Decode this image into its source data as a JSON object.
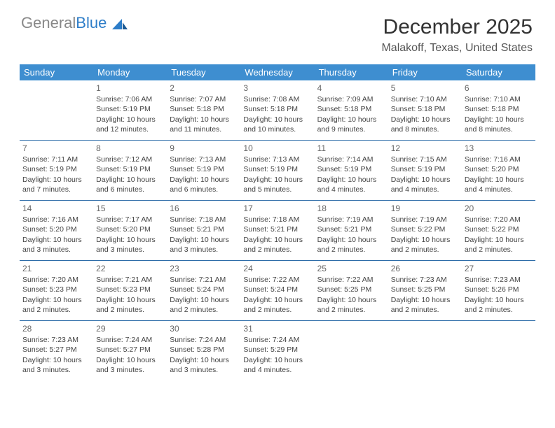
{
  "logo": {
    "text_gray": "General",
    "text_blue": "Blue"
  },
  "title": "December 2025",
  "location": "Malakoff, Texas, United States",
  "colors": {
    "header_bg": "#3e8ed0",
    "header_text": "#ffffff",
    "row_border": "#2d6ca8",
    "logo_gray": "#888888",
    "logo_blue": "#2d7dc8",
    "text": "#444444"
  },
  "typography": {
    "title_fontsize": 30,
    "location_fontsize": 16,
    "header_fontsize": 13,
    "daynum_fontsize": 12,
    "body_fontsize": 10.5
  },
  "day_headers": [
    "Sunday",
    "Monday",
    "Tuesday",
    "Wednesday",
    "Thursday",
    "Friday",
    "Saturday"
  ],
  "weeks": [
    [
      null,
      {
        "n": "1",
        "sr": "Sunrise: 7:06 AM",
        "ss": "Sunset: 5:19 PM",
        "d1": "Daylight: 10 hours",
        "d2": "and 12 minutes."
      },
      {
        "n": "2",
        "sr": "Sunrise: 7:07 AM",
        "ss": "Sunset: 5:18 PM",
        "d1": "Daylight: 10 hours",
        "d2": "and 11 minutes."
      },
      {
        "n": "3",
        "sr": "Sunrise: 7:08 AM",
        "ss": "Sunset: 5:18 PM",
        "d1": "Daylight: 10 hours",
        "d2": "and 10 minutes."
      },
      {
        "n": "4",
        "sr": "Sunrise: 7:09 AM",
        "ss": "Sunset: 5:18 PM",
        "d1": "Daylight: 10 hours",
        "d2": "and 9 minutes."
      },
      {
        "n": "5",
        "sr": "Sunrise: 7:10 AM",
        "ss": "Sunset: 5:18 PM",
        "d1": "Daylight: 10 hours",
        "d2": "and 8 minutes."
      },
      {
        "n": "6",
        "sr": "Sunrise: 7:10 AM",
        "ss": "Sunset: 5:18 PM",
        "d1": "Daylight: 10 hours",
        "d2": "and 8 minutes."
      }
    ],
    [
      {
        "n": "7",
        "sr": "Sunrise: 7:11 AM",
        "ss": "Sunset: 5:19 PM",
        "d1": "Daylight: 10 hours",
        "d2": "and 7 minutes."
      },
      {
        "n": "8",
        "sr": "Sunrise: 7:12 AM",
        "ss": "Sunset: 5:19 PM",
        "d1": "Daylight: 10 hours",
        "d2": "and 6 minutes."
      },
      {
        "n": "9",
        "sr": "Sunrise: 7:13 AM",
        "ss": "Sunset: 5:19 PM",
        "d1": "Daylight: 10 hours",
        "d2": "and 6 minutes."
      },
      {
        "n": "10",
        "sr": "Sunrise: 7:13 AM",
        "ss": "Sunset: 5:19 PM",
        "d1": "Daylight: 10 hours",
        "d2": "and 5 minutes."
      },
      {
        "n": "11",
        "sr": "Sunrise: 7:14 AM",
        "ss": "Sunset: 5:19 PM",
        "d1": "Daylight: 10 hours",
        "d2": "and 4 minutes."
      },
      {
        "n": "12",
        "sr": "Sunrise: 7:15 AM",
        "ss": "Sunset: 5:19 PM",
        "d1": "Daylight: 10 hours",
        "d2": "and 4 minutes."
      },
      {
        "n": "13",
        "sr": "Sunrise: 7:16 AM",
        "ss": "Sunset: 5:20 PM",
        "d1": "Daylight: 10 hours",
        "d2": "and 4 minutes."
      }
    ],
    [
      {
        "n": "14",
        "sr": "Sunrise: 7:16 AM",
        "ss": "Sunset: 5:20 PM",
        "d1": "Daylight: 10 hours",
        "d2": "and 3 minutes."
      },
      {
        "n": "15",
        "sr": "Sunrise: 7:17 AM",
        "ss": "Sunset: 5:20 PM",
        "d1": "Daylight: 10 hours",
        "d2": "and 3 minutes."
      },
      {
        "n": "16",
        "sr": "Sunrise: 7:18 AM",
        "ss": "Sunset: 5:21 PM",
        "d1": "Daylight: 10 hours",
        "d2": "and 3 minutes."
      },
      {
        "n": "17",
        "sr": "Sunrise: 7:18 AM",
        "ss": "Sunset: 5:21 PM",
        "d1": "Daylight: 10 hours",
        "d2": "and 2 minutes."
      },
      {
        "n": "18",
        "sr": "Sunrise: 7:19 AM",
        "ss": "Sunset: 5:21 PM",
        "d1": "Daylight: 10 hours",
        "d2": "and 2 minutes."
      },
      {
        "n": "19",
        "sr": "Sunrise: 7:19 AM",
        "ss": "Sunset: 5:22 PM",
        "d1": "Daylight: 10 hours",
        "d2": "and 2 minutes."
      },
      {
        "n": "20",
        "sr": "Sunrise: 7:20 AM",
        "ss": "Sunset: 5:22 PM",
        "d1": "Daylight: 10 hours",
        "d2": "and 2 minutes."
      }
    ],
    [
      {
        "n": "21",
        "sr": "Sunrise: 7:20 AM",
        "ss": "Sunset: 5:23 PM",
        "d1": "Daylight: 10 hours",
        "d2": "and 2 minutes."
      },
      {
        "n": "22",
        "sr": "Sunrise: 7:21 AM",
        "ss": "Sunset: 5:23 PM",
        "d1": "Daylight: 10 hours",
        "d2": "and 2 minutes."
      },
      {
        "n": "23",
        "sr": "Sunrise: 7:21 AM",
        "ss": "Sunset: 5:24 PM",
        "d1": "Daylight: 10 hours",
        "d2": "and 2 minutes."
      },
      {
        "n": "24",
        "sr": "Sunrise: 7:22 AM",
        "ss": "Sunset: 5:24 PM",
        "d1": "Daylight: 10 hours",
        "d2": "and 2 minutes."
      },
      {
        "n": "25",
        "sr": "Sunrise: 7:22 AM",
        "ss": "Sunset: 5:25 PM",
        "d1": "Daylight: 10 hours",
        "d2": "and 2 minutes."
      },
      {
        "n": "26",
        "sr": "Sunrise: 7:23 AM",
        "ss": "Sunset: 5:25 PM",
        "d1": "Daylight: 10 hours",
        "d2": "and 2 minutes."
      },
      {
        "n": "27",
        "sr": "Sunrise: 7:23 AM",
        "ss": "Sunset: 5:26 PM",
        "d1": "Daylight: 10 hours",
        "d2": "and 2 minutes."
      }
    ],
    [
      {
        "n": "28",
        "sr": "Sunrise: 7:23 AM",
        "ss": "Sunset: 5:27 PM",
        "d1": "Daylight: 10 hours",
        "d2": "and 3 minutes."
      },
      {
        "n": "29",
        "sr": "Sunrise: 7:24 AM",
        "ss": "Sunset: 5:27 PM",
        "d1": "Daylight: 10 hours",
        "d2": "and 3 minutes."
      },
      {
        "n": "30",
        "sr": "Sunrise: 7:24 AM",
        "ss": "Sunset: 5:28 PM",
        "d1": "Daylight: 10 hours",
        "d2": "and 3 minutes."
      },
      {
        "n": "31",
        "sr": "Sunrise: 7:24 AM",
        "ss": "Sunset: 5:29 PM",
        "d1": "Daylight: 10 hours",
        "d2": "and 4 minutes."
      },
      null,
      null,
      null
    ]
  ]
}
